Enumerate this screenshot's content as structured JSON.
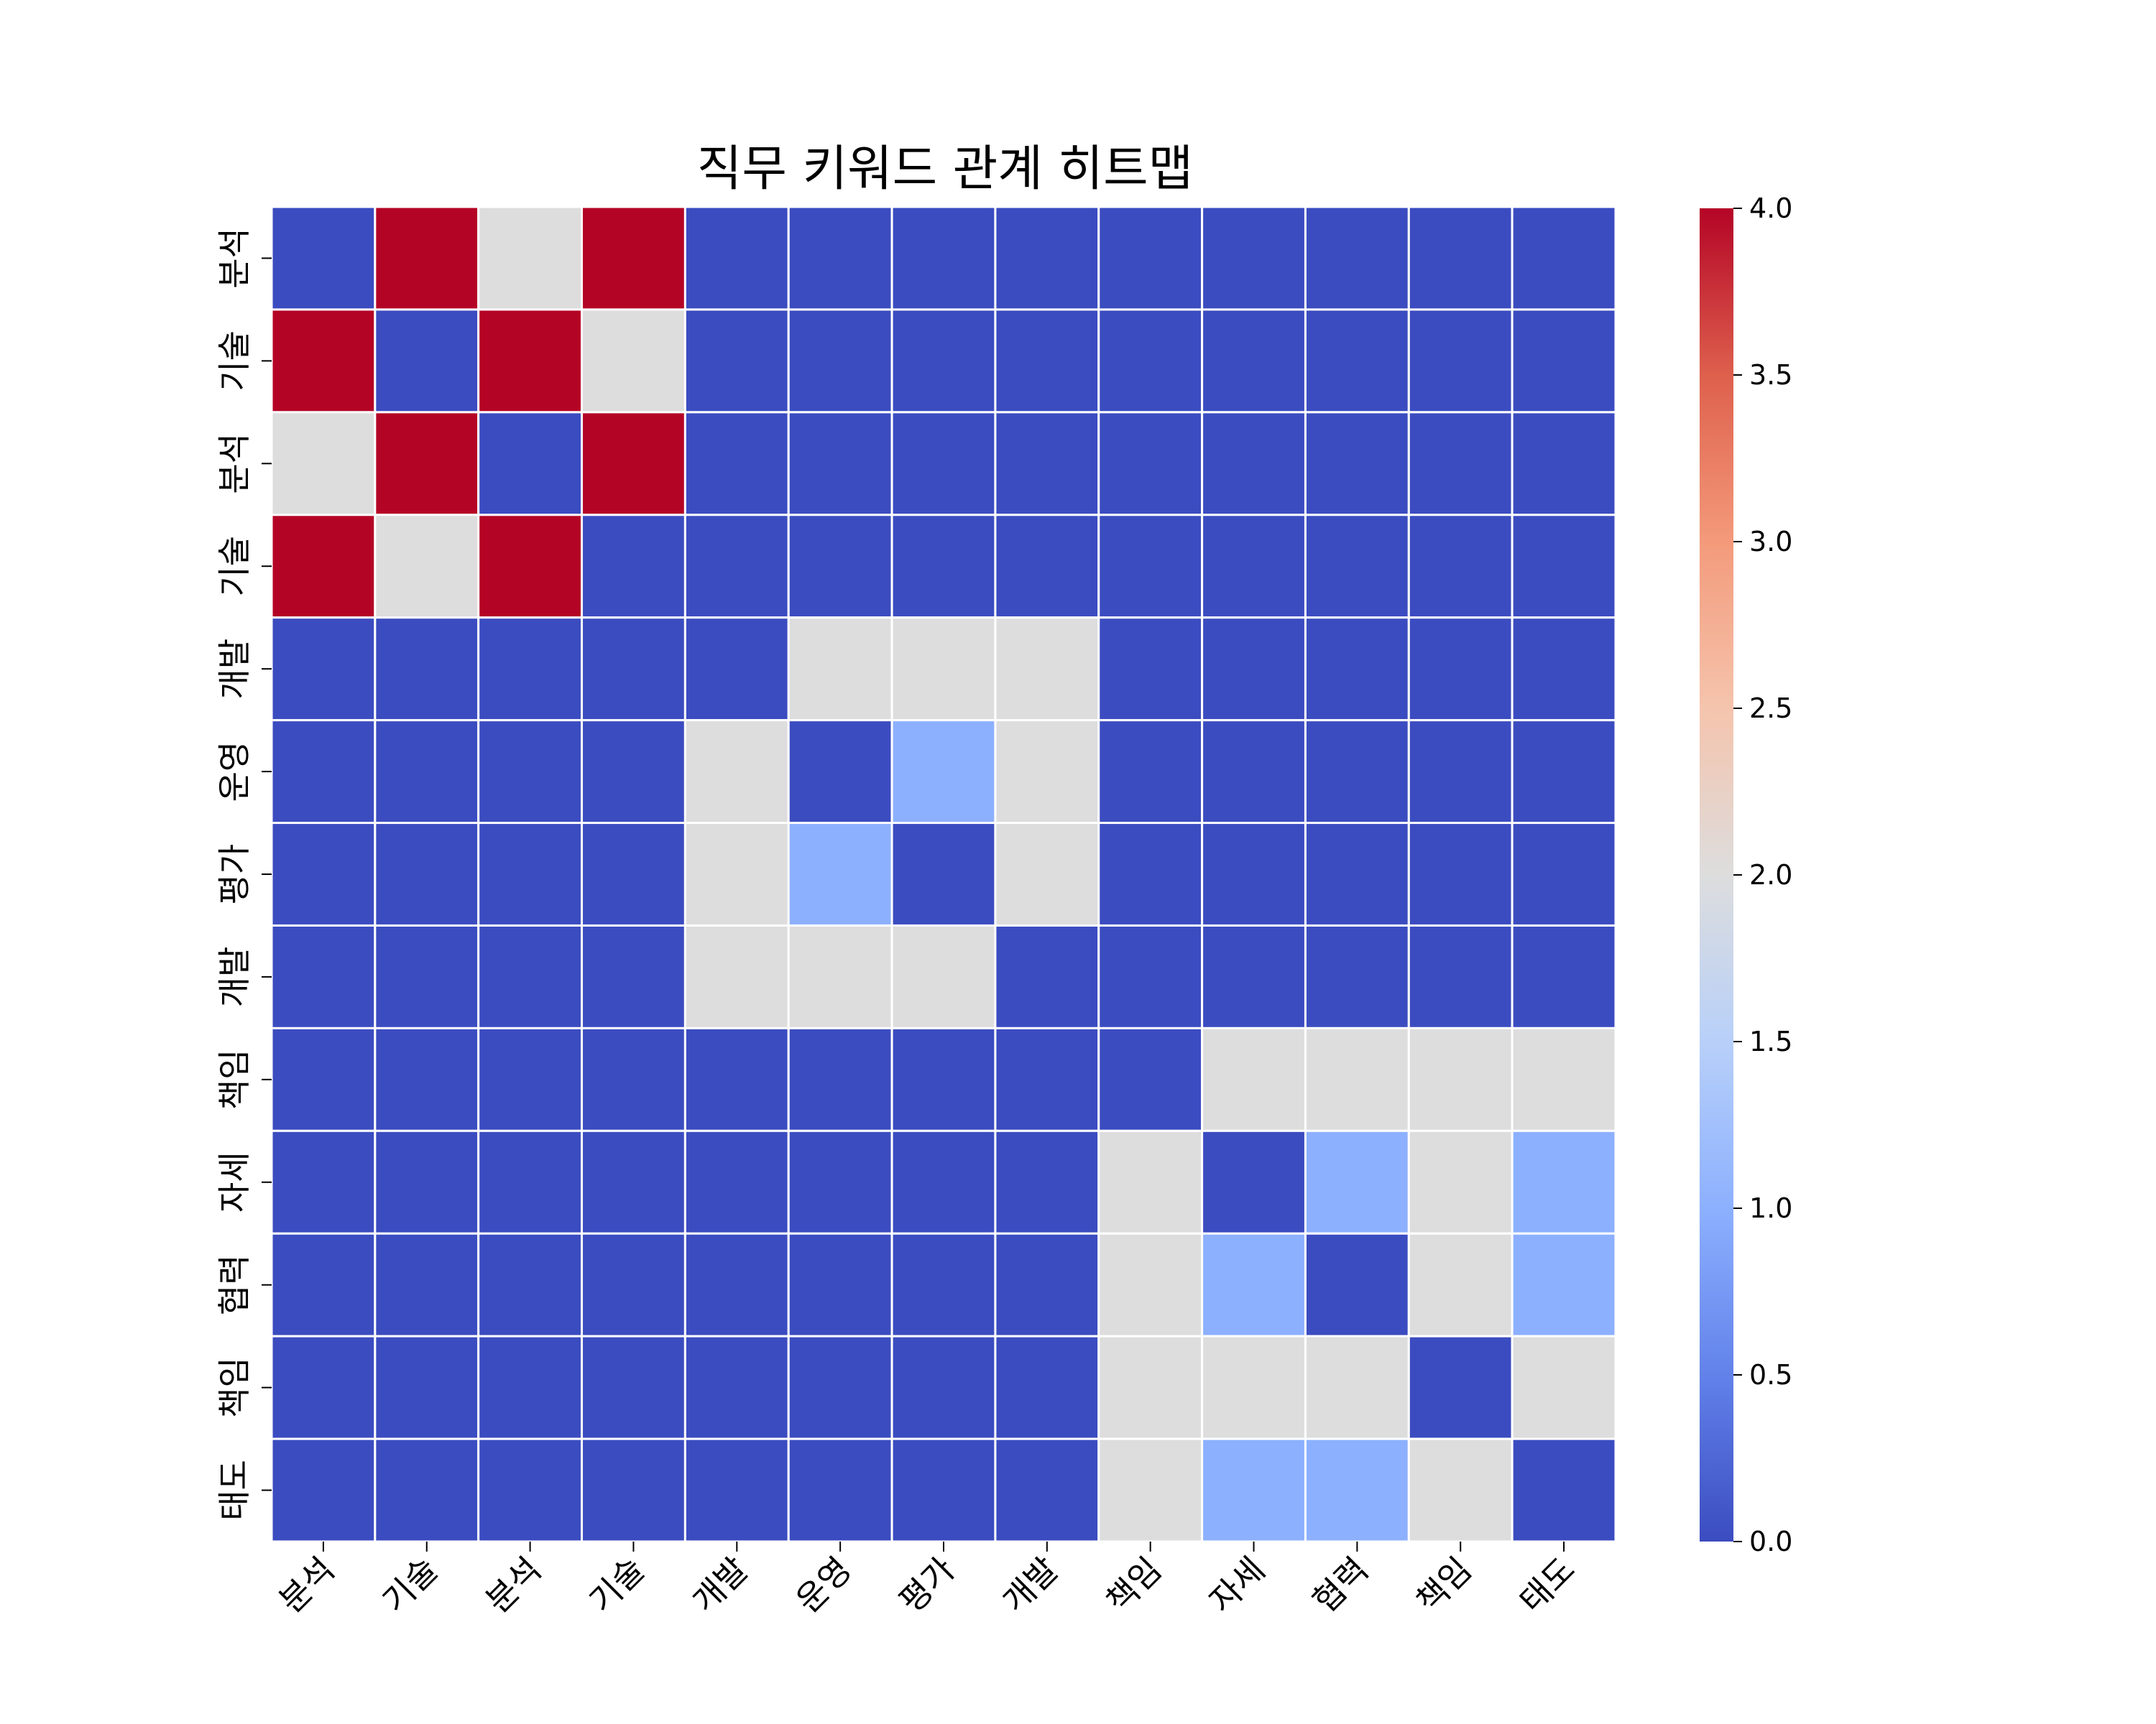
{
  "chart_data": {
    "type": "heatmap",
    "title": "직무 키워드 관계 히트맵",
    "xlabel": "",
    "ylabel": "",
    "x_categories": [
      "분석",
      "기술",
      "분석",
      "기술",
      "개발",
      "운영",
      "평가",
      "개발",
      "책임",
      "자세",
      "협력",
      "책임",
      "태도"
    ],
    "y_categories": [
      "분석",
      "기술",
      "분석",
      "기술",
      "개발",
      "운영",
      "평가",
      "개발",
      "책임",
      "자세",
      "협력",
      "책임",
      "태도"
    ],
    "values": [
      [
        0,
        4,
        2,
        4,
        0,
        0,
        0,
        0,
        0,
        0,
        0,
        0,
        0
      ],
      [
        4,
        0,
        4,
        2,
        0,
        0,
        0,
        0,
        0,
        0,
        0,
        0,
        0
      ],
      [
        2,
        4,
        0,
        4,
        0,
        0,
        0,
        0,
        0,
        0,
        0,
        0,
        0
      ],
      [
        4,
        2,
        4,
        0,
        0,
        0,
        0,
        0,
        0,
        0,
        0,
        0,
        0
      ],
      [
        0,
        0,
        0,
        0,
        0,
        2,
        2,
        2,
        0,
        0,
        0,
        0,
        0
      ],
      [
        0,
        0,
        0,
        0,
        2,
        0,
        1,
        2,
        0,
        0,
        0,
        0,
        0
      ],
      [
        0,
        0,
        0,
        0,
        2,
        1,
        0,
        2,
        0,
        0,
        0,
        0,
        0
      ],
      [
        0,
        0,
        0,
        0,
        2,
        2,
        2,
        0,
        0,
        0,
        0,
        0,
        0
      ],
      [
        0,
        0,
        0,
        0,
        0,
        0,
        0,
        0,
        0,
        2,
        2,
        2,
        2
      ],
      [
        0,
        0,
        0,
        0,
        0,
        0,
        0,
        0,
        2,
        0,
        1,
        2,
        1
      ],
      [
        0,
        0,
        0,
        0,
        0,
        0,
        0,
        0,
        2,
        1,
        0,
        2,
        1
      ],
      [
        0,
        0,
        0,
        0,
        0,
        0,
        0,
        0,
        2,
        2,
        2,
        0,
        2
      ],
      [
        0,
        0,
        0,
        0,
        0,
        0,
        0,
        0,
        2,
        1,
        1,
        2,
        0
      ]
    ],
    "colormap": "coolwarm",
    "vmin": 0,
    "vmax": 4,
    "colorbar_ticks": [
      "0.0",
      "0.5",
      "1.0",
      "1.5",
      "2.0",
      "2.5",
      "3.0",
      "3.5",
      "4.0"
    ],
    "grid_line_color": "#ffffff",
    "colors": {
      "low": "#3b4cc0",
      "mid": "#dddddd",
      "high": "#b40426"
    }
  }
}
